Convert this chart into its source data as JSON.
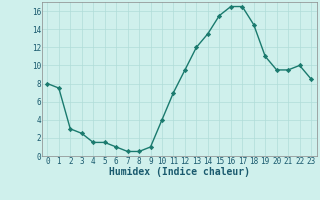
{
  "x": [
    0,
    1,
    2,
    3,
    4,
    5,
    6,
    7,
    8,
    9,
    10,
    11,
    12,
    13,
    14,
    15,
    16,
    17,
    18,
    19,
    20,
    21,
    22,
    23
  ],
  "y": [
    8,
    7.5,
    3,
    2.5,
    1.5,
    1.5,
    1,
    0.5,
    0.5,
    1,
    4,
    7,
    9.5,
    12,
    13.5,
    15.5,
    16.5,
    16.5,
    14.5,
    11,
    9.5,
    9.5,
    10,
    8.5
  ],
  "line_color": "#1a7a6e",
  "marker": "D",
  "marker_size": 2.2,
  "bg_color": "#cff0ec",
  "grid_color": "#b0ddd8",
  "xlabel": "Humidex (Indice chaleur)",
  "ylim": [
    0,
    17
  ],
  "xlim_min": -0.5,
  "xlim_max": 23.5,
  "yticks": [
    0,
    2,
    4,
    6,
    8,
    10,
    12,
    14,
    16
  ],
  "xticks": [
    0,
    1,
    2,
    3,
    4,
    5,
    6,
    7,
    8,
    9,
    10,
    11,
    12,
    13,
    14,
    15,
    16,
    17,
    18,
    19,
    20,
    21,
    22,
    23
  ],
  "tick_fontsize": 5.5,
  "xlabel_fontsize": 7,
  "linewidth": 1.0
}
